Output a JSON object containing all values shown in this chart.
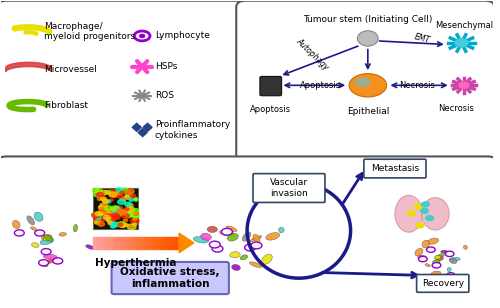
{
  "fig_width": 5.0,
  "fig_height": 3.08,
  "dpi": 100,
  "bg_color": "#ffffff",
  "arrow_color": "#1a1a88",
  "tumour_stem_label": "Tumour stem (Initiating Cell)",
  "epithelial_label": "Epithelial",
  "mesenchymal_label": "Mesenchymal",
  "autophagy_label": "Autophagy",
  "emt_label": "EMT",
  "apoptosis_label": "Apoptosis",
  "necrosis_label": "Necrosis",
  "hyperthermia_label": "Hyperthermia",
  "oxidative_stress_label": "Oxidative stress,\ninflammation",
  "vascular_invasion_label": "Vascular\ninvasion",
  "metastasis_label": "Metastasis",
  "recovery_label": "Recovery",
  "orange_color": "#f5901e",
  "teal_color": "#44cccc",
  "lung_color": "#f0b0c0",
  "circle_color": "#1a1a88",
  "oxidative_box_color": "#c8c8ff",
  "macrophage_color": "#e8e000",
  "microvessel_color": "#d94040",
  "fibroblast_color": "#66bb00",
  "lymphocyte_color": "#9400cc",
  "hsps_color": "#ff44cc",
  "ros_color": "#888888",
  "proinflam_color": "#224488",
  "legend_fs": 6.5
}
